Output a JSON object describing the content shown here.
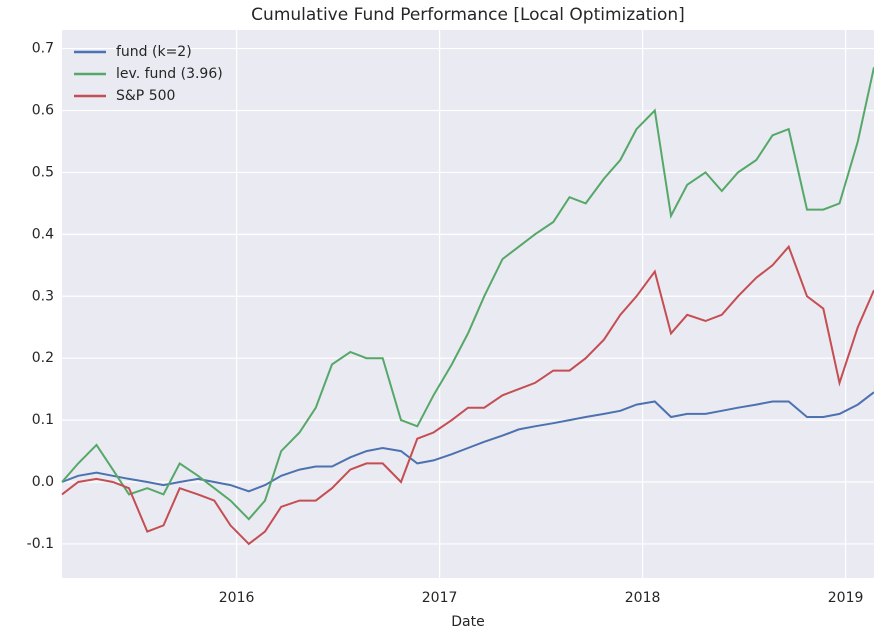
{
  "chart_data": {
    "type": "line",
    "title": "Cumulative Fund Performance [Local Optimization]",
    "xlabel": "Date",
    "x": [
      2015.14,
      2015.22,
      2015.31,
      2015.39,
      2015.47,
      2015.56,
      2015.64,
      2015.72,
      2015.81,
      2015.89,
      2015.97,
      2016.06,
      2016.14,
      2016.22,
      2016.31,
      2016.39,
      2016.47,
      2016.56,
      2016.64,
      2016.72,
      2016.81,
      2016.89,
      2016.97,
      2017.06,
      2017.14,
      2017.22,
      2017.31,
      2017.39,
      2017.47,
      2017.56,
      2017.64,
      2017.72,
      2017.81,
      2017.89,
      2017.97,
      2018.06,
      2018.14,
      2018.22,
      2018.31,
      2018.39,
      2018.47,
      2018.56,
      2018.64,
      2018.72,
      2018.81,
      2018.89,
      2018.97,
      2019.06,
      2019.14
    ],
    "series": [
      {
        "name": "fund (k=2)",
        "color": "#4c72b0",
        "values": [
          0.0,
          0.01,
          0.015,
          0.01,
          0.005,
          0.0,
          -0.005,
          0.0,
          0.005,
          0.0,
          -0.005,
          -0.015,
          -0.005,
          0.01,
          0.02,
          0.025,
          0.025,
          0.04,
          0.05,
          0.055,
          0.05,
          0.03,
          0.035,
          0.045,
          0.055,
          0.065,
          0.075,
          0.085,
          0.09,
          0.095,
          0.1,
          0.105,
          0.11,
          0.115,
          0.125,
          0.13,
          0.105,
          0.11,
          0.11,
          0.115,
          0.12,
          0.125,
          0.13,
          0.13,
          0.105,
          0.105,
          0.11,
          0.125,
          0.145
        ]
      },
      {
        "name": "lev. fund (3.96)",
        "color": "#55a868",
        "values": [
          0.0,
          0.03,
          0.06,
          0.02,
          -0.02,
          -0.01,
          -0.02,
          0.03,
          0.01,
          -0.01,
          -0.03,
          -0.06,
          -0.03,
          0.05,
          0.08,
          0.12,
          0.19,
          0.21,
          0.2,
          0.2,
          0.1,
          0.09,
          0.14,
          0.19,
          0.24,
          0.3,
          0.36,
          0.38,
          0.4,
          0.42,
          0.46,
          0.45,
          0.49,
          0.52,
          0.57,
          0.6,
          0.43,
          0.48,
          0.5,
          0.47,
          0.5,
          0.52,
          0.56,
          0.57,
          0.44,
          0.44,
          0.45,
          0.55,
          0.67
        ]
      },
      {
        "name": "S&P 500",
        "color": "#c44e52",
        "values": [
          -0.02,
          0.0,
          0.005,
          0.0,
          -0.01,
          -0.08,
          -0.07,
          -0.01,
          -0.02,
          -0.03,
          -0.07,
          -0.1,
          -0.08,
          -0.04,
          -0.03,
          -0.03,
          -0.01,
          0.02,
          0.03,
          0.03,
          0.0,
          0.07,
          0.08,
          0.1,
          0.12,
          0.12,
          0.14,
          0.15,
          0.16,
          0.18,
          0.18,
          0.2,
          0.23,
          0.27,
          0.3,
          0.34,
          0.24,
          0.27,
          0.26,
          0.27,
          0.3,
          0.33,
          0.35,
          0.38,
          0.3,
          0.28,
          0.16,
          0.25,
          0.31
        ]
      }
    ],
    "xlim": [
      2015.14,
      2019.14
    ],
    "xticks": [
      2016,
      2017,
      2018,
      2019
    ],
    "ylim": [
      -0.155,
      0.73
    ],
    "yticks": [
      -0.1,
      {
        "value": 0,
        "label": "0.0"
      },
      0.1,
      0.2,
      0.3,
      0.4,
      0.5,
      0.6,
      0.7
    ],
    "grid": true,
    "legend": "upper left"
  }
}
